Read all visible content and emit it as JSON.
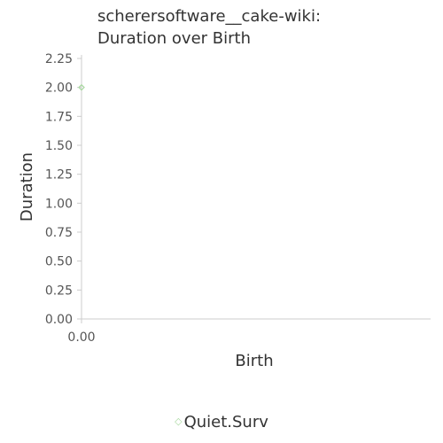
{
  "chart_data": {
    "type": "scatter",
    "title_lines": [
      "scherersoftware__cake-wiki:",
      "Duration over Birth"
    ],
    "xlabel": "Birth",
    "ylabel": "Duration",
    "xlim": [
      0,
      1
    ],
    "ylim": [
      0,
      2.25
    ],
    "x_ticks": [
      "0.00"
    ],
    "y_ticks": [
      "0.00",
      "0.25",
      "0.50",
      "0.75",
      "1.00",
      "1.25",
      "1.50",
      "1.75",
      "2.00",
      "2.25"
    ],
    "grid": false,
    "legend_placement": "bottom-center",
    "series": [
      {
        "name": "Quiet.Surv",
        "marker": "diamond-open",
        "color": "#a8d8a0",
        "points": [
          {
            "x": 0.0,
            "y": 2.0
          }
        ]
      }
    ]
  }
}
